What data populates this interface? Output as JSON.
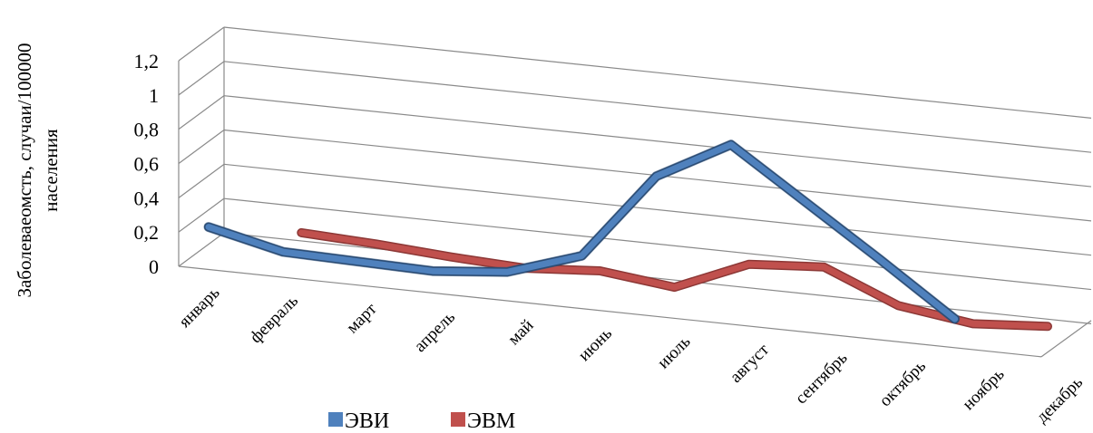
{
  "chart_data": {
    "type": "line",
    "ylabel": "Заболеваеомсть, случаи/100000 населения",
    "ylabel_lines": [
      "Заболеваеомсть, случаи/100000",
      "населения"
    ],
    "categories": [
      "январь",
      "февраль",
      "март",
      "апрель",
      "май",
      "июнь",
      "июль",
      "август",
      "сентябрь",
      "октябрь",
      "ноябрь",
      "декабрь"
    ],
    "y_ticks": [
      "0",
      "0,2",
      "0,4",
      "0,6",
      "0,8",
      "1",
      "1,2"
    ],
    "ylim": [
      0,
      1.2
    ],
    "grid": true,
    "legend_position": "bottom",
    "series": [
      {
        "name": "ЭВИ",
        "color": "#4F81BD",
        "values": [
          0.15,
          0.05,
          0.04,
          0.03,
          0.07,
          0.21,
          0.72,
          0.95,
          0.66,
          0.37,
          0.07,
          null
        ]
      },
      {
        "name": "ЭВМ",
        "color": "#C0504D",
        "values": [
          null,
          0.12,
          0.1,
          0.07,
          0.05,
          0.08,
          0.03,
          0.21,
          0.24,
          0.06,
          0.0,
          0.03
        ]
      }
    ]
  }
}
